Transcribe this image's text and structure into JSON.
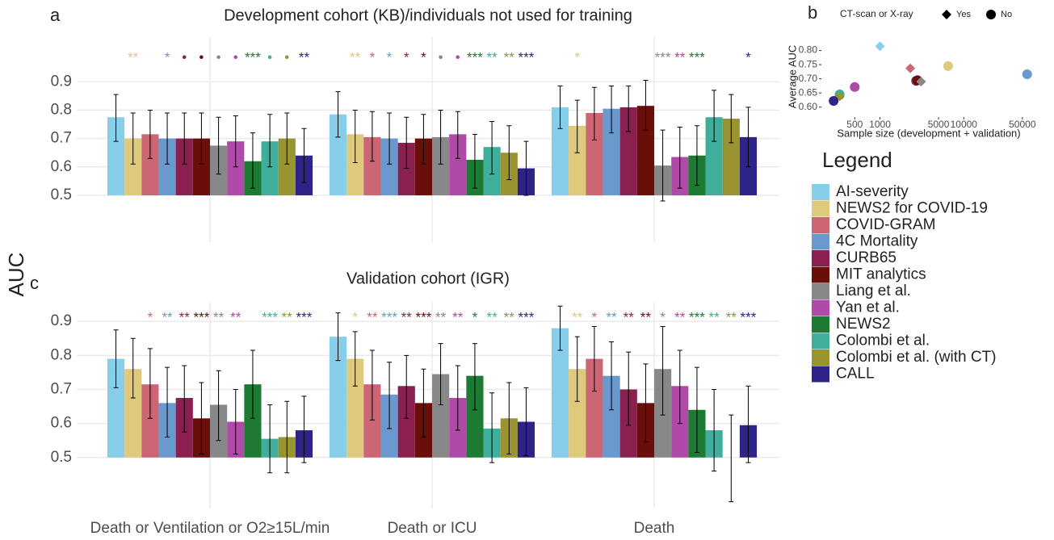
{
  "y_axis_label": "AUC",
  "legend_title": "Legend",
  "chart_data": [
    {
      "type": "bar",
      "panel": "a",
      "title": "Development cohort (KB)/individuals not used for training",
      "ylim": [
        0.335,
        1.06
      ],
      "yticks": [
        0.5,
        0.6,
        0.7,
        0.8,
        0.9
      ],
      "grid": true,
      "series": [
        {
          "name": "AI-severity",
          "color": "#87ceeb",
          "values": [
            0.775,
            0.785,
            0.81
          ],
          "low": [
            0.69,
            0.705,
            0.735
          ],
          "high": [
            0.855,
            0.865,
            0.885
          ],
          "significance": [
            null,
            null,
            null
          ]
        },
        {
          "name": "NEWS2 for COVID-19",
          "color": "#dfc97c",
          "values": [
            0.7,
            0.715,
            0.745
          ],
          "low": [
            0.61,
            0.615,
            0.65
          ],
          "high": [
            0.79,
            0.8,
            0.835
          ],
          "significance": [
            "**",
            "**",
            "*"
          ]
        },
        {
          "name": "COVID-GRAM",
          "color": "#cd6674",
          "values": [
            0.715,
            0.705,
            0.79
          ],
          "low": [
            0.63,
            0.62,
            0.695
          ],
          "high": [
            0.8,
            0.795,
            0.88
          ],
          "significance": [
            null,
            "*",
            null
          ]
        },
        {
          "name": "4C Mortality",
          "color": "#6a9acd",
          "values": [
            0.7,
            0.7,
            0.805
          ],
          "low": [
            0.61,
            0.61,
            0.72
          ],
          "high": [
            0.79,
            0.79,
            0.885
          ],
          "significance": [
            "*",
            "*",
            null
          ]
        },
        {
          "name": "CURB65",
          "color": "#8a2050",
          "values": [
            0.7,
            0.685,
            0.81
          ],
          "low": [
            0.61,
            0.595,
            0.725
          ],
          "high": [
            0.79,
            0.775,
            0.885
          ],
          "significance": [
            "•",
            "*",
            null
          ]
        },
        {
          "name": "MIT analytics",
          "color": "#6a0e0a",
          "values": [
            0.7,
            0.7,
            0.815
          ],
          "low": [
            0.61,
            0.61,
            0.73
          ],
          "high": [
            0.79,
            0.785,
            0.905
          ],
          "significance": [
            "•",
            "*",
            null
          ]
        },
        {
          "name": "Liang et al.",
          "color": "#888888",
          "values": [
            0.675,
            0.705,
            0.605
          ],
          "low": [
            0.575,
            0.61,
            0.48
          ],
          "high": [
            0.775,
            0.8,
            0.73
          ],
          "significance": [
            "•",
            "•",
            "***"
          ]
        },
        {
          "name": "Yan et al.",
          "color": "#b04aa8",
          "values": [
            0.69,
            0.715,
            0.635
          ],
          "low": [
            0.6,
            0.63,
            0.525
          ],
          "high": [
            0.78,
            0.795,
            0.74
          ],
          "significance": [
            "•",
            "•",
            "**"
          ]
        },
        {
          "name": "NEWS2",
          "color": "#1d7a32",
          "values": [
            0.62,
            0.625,
            0.64
          ],
          "low": [
            0.525,
            0.525,
            0.535
          ],
          "high": [
            0.72,
            0.715,
            0.745
          ],
          "significance": [
            "***",
            "***",
            "***"
          ]
        },
        {
          "name": "Colombi et al.",
          "color": "#3fae9a",
          "values": [
            0.69,
            0.67,
            0.775
          ],
          "low": [
            0.6,
            0.575,
            0.69
          ],
          "high": [
            0.785,
            0.76,
            0.87
          ],
          "significance": [
            "•",
            "**",
            null
          ]
        },
        {
          "name": "Colombi et al. (with CT)",
          "color": "#9a9430",
          "values": [
            0.7,
            0.65,
            0.77
          ],
          "low": [
            0.61,
            0.555,
            0.685
          ],
          "high": [
            0.79,
            0.745,
            0.855
          ],
          "significance": [
            "•",
            "**",
            null
          ]
        },
        {
          "name": "CALL",
          "color": "#2e2488",
          "values": [
            0.64,
            0.595,
            0.705
          ],
          "low": [
            0.545,
            0.5,
            0.6
          ],
          "high": [
            0.735,
            0.69,
            0.81
          ],
          "significance": [
            "**",
            "***",
            "*"
          ]
        }
      ]
    },
    {
      "type": "scatter",
      "panel": "b",
      "xlabel": "Sample size (development + validation)",
      "ylabel": "Average AUC",
      "shape_legend": {
        "title": "CT-scan or X-ray",
        "labels": [
          "Yes",
          "No"
        ]
      },
      "xlog": true,
      "xlim": [
        200,
        80000
      ],
      "xticks": [
        500,
        1000,
        5000,
        10000,
        50000
      ],
      "ylim": [
        0.565,
        0.85
      ],
      "yticks": [
        {
          "value": 0.6,
          "label": "0.60"
        },
        {
          "value": 0.65,
          "label": "0.65"
        },
        {
          "value": 0.7,
          "label": "0.70"
        },
        {
          "value": 0.75,
          "label": "0.75"
        },
        {
          "value": 0.8,
          "label": "0.80"
        }
      ],
      "x": [
        1000,
        6500,
        2300,
        57000,
        2700,
        2800,
        3100,
        500,
        330,
        330,
        330,
        280
      ],
      "y": [
        0.815,
        0.745,
        0.737,
        0.716,
        0.693,
        0.695,
        0.69,
        0.671,
        0.643,
        0.645,
        0.638,
        0.622
      ],
      "ct": [
        true,
        false,
        true,
        false,
        false,
        false,
        true,
        false,
        false,
        false,
        true,
        false
      ]
    },
    {
      "type": "bar",
      "panel": "c",
      "title": "Validation cohort (IGR)",
      "categories": [
        "Death or Ventilation or O2≥15L/min",
        "Death or ICU",
        "Death"
      ],
      "ylim": [
        0.35,
        0.955
      ],
      "yticks": [
        0.5,
        0.6,
        0.7,
        0.8,
        0.9
      ],
      "grid": true,
      "series": [
        {
          "values": [
            0.79,
            0.855,
            0.88
          ],
          "low": [
            0.705,
            0.785,
            0.815
          ],
          "high": [
            0.875,
            0.925,
            0.945
          ],
          "significance": [
            null,
            null,
            null
          ]
        },
        {
          "values": [
            0.76,
            0.79,
            0.76
          ],
          "low": [
            0.675,
            0.71,
            0.665
          ],
          "high": [
            0.85,
            0.87,
            0.855
          ],
          "significance": [
            null,
            "*",
            "**"
          ]
        },
        {
          "values": [
            0.715,
            0.715,
            0.79
          ],
          "low": [
            0.615,
            0.61,
            0.695
          ],
          "high": [
            0.82,
            0.815,
            0.885
          ],
          "significance": [
            "*",
            "**",
            "*"
          ]
        },
        {
          "values": [
            0.66,
            0.685,
            0.74
          ],
          "low": [
            0.56,
            0.585,
            0.64
          ],
          "high": [
            0.765,
            0.78,
            0.84
          ],
          "significance": [
            "**",
            "***",
            "**"
          ]
        },
        {
          "values": [
            0.675,
            0.71,
            0.7
          ],
          "low": [
            0.575,
            0.615,
            0.595
          ],
          "high": [
            0.77,
            0.8,
            0.81
          ],
          "significance": [
            "**",
            "**",
            "**"
          ]
        },
        {
          "values": [
            0.615,
            0.66,
            0.66
          ],
          "low": [
            0.51,
            0.56,
            0.545
          ],
          "high": [
            0.72,
            0.76,
            0.775
          ],
          "significance": [
            "***",
            "***",
            "**"
          ]
        },
        {
          "values": [
            0.655,
            0.745,
            0.76
          ],
          "low": [
            0.55,
            0.655,
            0.625
          ],
          "high": [
            0.755,
            0.835,
            0.885
          ],
          "significance": [
            "**",
            "**",
            "*"
          ]
        },
        {
          "values": [
            0.605,
            0.675,
            0.71
          ],
          "low": [
            0.51,
            0.58,
            0.6
          ],
          "high": [
            0.7,
            0.77,
            0.815
          ],
          "significance": [
            "**",
            "**",
            "**"
          ]
        },
        {
          "values": [
            0.715,
            0.74,
            0.64
          ],
          "low": [
            0.615,
            0.64,
            0.515
          ],
          "high": [
            0.815,
            0.835,
            0.765
          ],
          "significance": [
            null,
            "*",
            "***"
          ]
        },
        {
          "values": [
            0.555,
            0.585,
            0.58
          ],
          "low": [
            0.455,
            0.485,
            0.46
          ],
          "high": [
            0.655,
            0.69,
            0.7
          ],
          "significance": [
            "***",
            "**",
            "**"
          ]
        },
        {
          "values": [
            0.56,
            0.615,
            0.5
          ],
          "low": [
            0.455,
            0.51,
            0.37
          ],
          "high": [
            0.665,
            0.72,
            0.625
          ],
          "significance": [
            "**",
            "**",
            "**"
          ]
        },
        {
          "values": [
            0.58,
            0.605,
            0.595
          ],
          "low": [
            0.485,
            0.505,
            0.485
          ],
          "high": [
            0.68,
            0.705,
            0.71
          ],
          "significance": [
            "***",
            "***",
            "***"
          ]
        }
      ]
    }
  ]
}
